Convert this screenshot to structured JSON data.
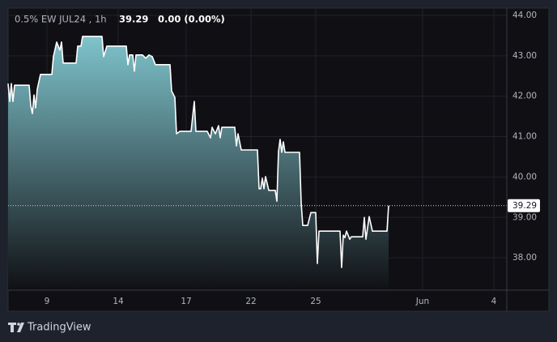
{
  "chart_data": {
    "type": "area",
    "title": "0.5% EW JUL24 , 1h",
    "annotations": [
      "0.00 (0.00%)"
    ],
    "last_price": 39.29,
    "x": [
      0,
      1,
      2,
      3,
      4,
      13,
      14,
      15,
      16,
      17,
      18,
      20,
      27,
      28,
      30,
      32,
      33,
      34,
      35,
      42,
      43,
      45,
      46,
      58,
      59,
      61,
      73,
      74,
      75,
      77,
      78,
      79,
      83,
      85,
      87,
      89,
      91,
      92,
      100,
      101,
      103,
      104,
      106,
      113,
      115,
      116,
      123,
      125,
      126,
      128,
      130,
      131,
      132,
      133,
      140,
      141,
      142,
      144,
      154,
      155,
      156,
      157,
      158,
      159,
      161,
      165,
      166,
      167,
      168,
      169,
      170,
      171,
      180,
      181,
      182,
      185,
      187,
      190,
      191,
      192,
      205,
      206,
      207,
      208,
      209,
      211,
      212,
      219,
      220,
      221,
      223,
      225,
      234,
      235
    ],
    "series": [
      {
        "name": "0.5% EW JUL24",
        "color": "#ffffff",
        "values": [
          42.31,
          41.87,
          42.31,
          41.87,
          42.27,
          42.27,
          41.77,
          41.57,
          42.03,
          41.71,
          42.17,
          42.54,
          42.54,
          42.98,
          43.34,
          43.14,
          43.34,
          42.82,
          42.82,
          42.82,
          43.24,
          43.24,
          43.48,
          43.48,
          42.98,
          43.24,
          43.24,
          42.78,
          43.02,
          43.02,
          42.62,
          43.02,
          43.02,
          42.94,
          43.02,
          42.98,
          42.78,
          42.78,
          42.78,
          42.13,
          41.97,
          41.07,
          41.13,
          41.13,
          41.87,
          41.13,
          41.13,
          40.97,
          41.23,
          41.07,
          41.27,
          40.97,
          41.23,
          41.23,
          41.23,
          40.77,
          41.07,
          40.67,
          40.67,
          39.71,
          39.71,
          39.97,
          39.71,
          40.01,
          39.67,
          39.67,
          39.4,
          40.63,
          40.93,
          40.61,
          40.87,
          40.61,
          40.61,
          39.36,
          38.8,
          38.8,
          39.12,
          39.12,
          37.86,
          38.66,
          38.66,
          37.76,
          38.56,
          38.5,
          38.66,
          38.46,
          38.52,
          38.52,
          39.0,
          38.46,
          39.02,
          38.66,
          38.66,
          39.29
        ]
      }
    ],
    "xlim": [
      0,
      308
    ],
    "xticks": [
      {
        "value": 24,
        "label": "9"
      },
      {
        "value": 68,
        "label": "14"
      },
      {
        "value": 110,
        "label": "17"
      },
      {
        "value": 150,
        "label": "22"
      },
      {
        "value": 190,
        "label": "25"
      },
      {
        "value": 256,
        "label": "Jun"
      },
      {
        "value": 300,
        "label": "4"
      }
    ],
    "ylim": [
      37.2,
      44.18
    ],
    "yticks": [
      {
        "value": 38,
        "label": "38.00"
      },
      {
        "value": 39,
        "label": "39.00"
      },
      {
        "value": 40,
        "label": "40.00"
      },
      {
        "value": 41,
        "label": "41.00"
      },
      {
        "value": 42,
        "label": "42.00"
      },
      {
        "value": 43,
        "label": "43.00"
      },
      {
        "value": 44,
        "label": "44.00"
      }
    ],
    "grid": true
  },
  "brand": "TradingView"
}
